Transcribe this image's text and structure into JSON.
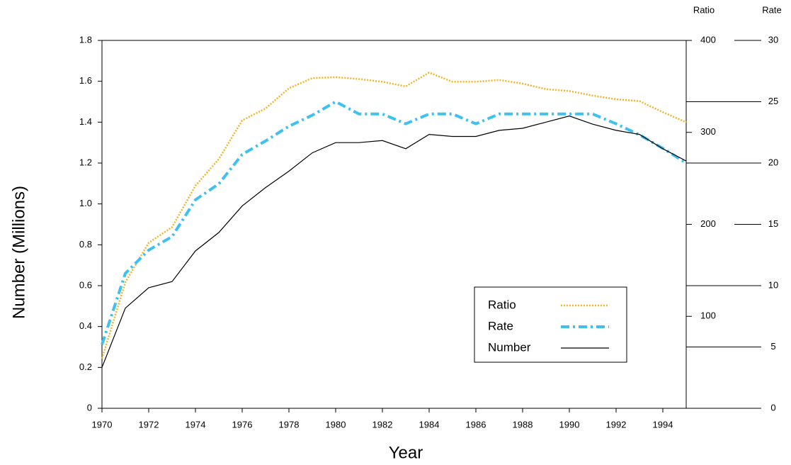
{
  "chart_data": {
    "type": "line",
    "xlabel": "Year",
    "ylabel": "Number (Millions)",
    "y2label": "Ratio",
    "y3label": "Rate",
    "x": [
      1970,
      1971,
      1972,
      1973,
      1974,
      1975,
      1976,
      1977,
      1978,
      1979,
      1980,
      1981,
      1982,
      1983,
      1984,
      1985,
      1986,
      1987,
      1988,
      1989,
      1990,
      1991,
      1992,
      1993,
      1994,
      1995
    ],
    "xlim": [
      1970,
      1995
    ],
    "xticks": [
      1970,
      1972,
      1974,
      1976,
      1978,
      1980,
      1982,
      1984,
      1986,
      1988,
      1990,
      1992,
      1994
    ],
    "ylim": [
      0,
      1.8
    ],
    "yticks": [
      0,
      0.2,
      0.4,
      0.6,
      0.8,
      {
        "value": 1,
        "label": "1.0"
      },
      1.2,
      1.4,
      1.6,
      1.8
    ],
    "y2lim": [
      0,
      400
    ],
    "y2ticks": [
      100,
      200,
      300,
      400
    ],
    "y3lim": [
      0,
      30
    ],
    "y3ticks": [
      0,
      5,
      10,
      15,
      20,
      25,
      30
    ],
    "series": [
      {
        "name": "Ratio",
        "color": "#f0b429",
        "style": "dotted",
        "axis": "y2",
        "values": [
          54,
          137,
          180,
          197,
          242,
          271,
          313,
          326,
          348,
          359,
          360,
          358,
          355,
          350,
          365,
          355,
          355,
          357,
          353,
          347,
          345,
          340,
          336,
          334,
          322,
          311
        ]
      },
      {
        "name": "Rate",
        "color": "#3ec1f0",
        "style": "dashdot",
        "axis": "y3",
        "values": [
          5.2,
          11.0,
          12.9,
          14.0,
          17.0,
          18.3,
          20.7,
          21.8,
          23.0,
          23.9,
          25.0,
          24.0,
          24.0,
          23.2,
          24.0,
          24.0,
          23.2,
          24.0,
          24.0,
          24.0,
          24.0,
          24.0,
          23.2,
          22.3,
          21.2,
          20.0
        ]
      },
      {
        "name": "Number",
        "color": "#000000",
        "style": "solid",
        "axis": "y",
        "values": [
          0.2,
          0.49,
          0.59,
          0.62,
          0.77,
          0.86,
          0.99,
          1.08,
          1.16,
          1.25,
          1.3,
          1.3,
          1.31,
          1.27,
          1.34,
          1.33,
          1.33,
          1.36,
          1.37,
          1.4,
          1.43,
          1.39,
          1.36,
          1.34,
          1.27,
          1.21
        ]
      }
    ]
  }
}
